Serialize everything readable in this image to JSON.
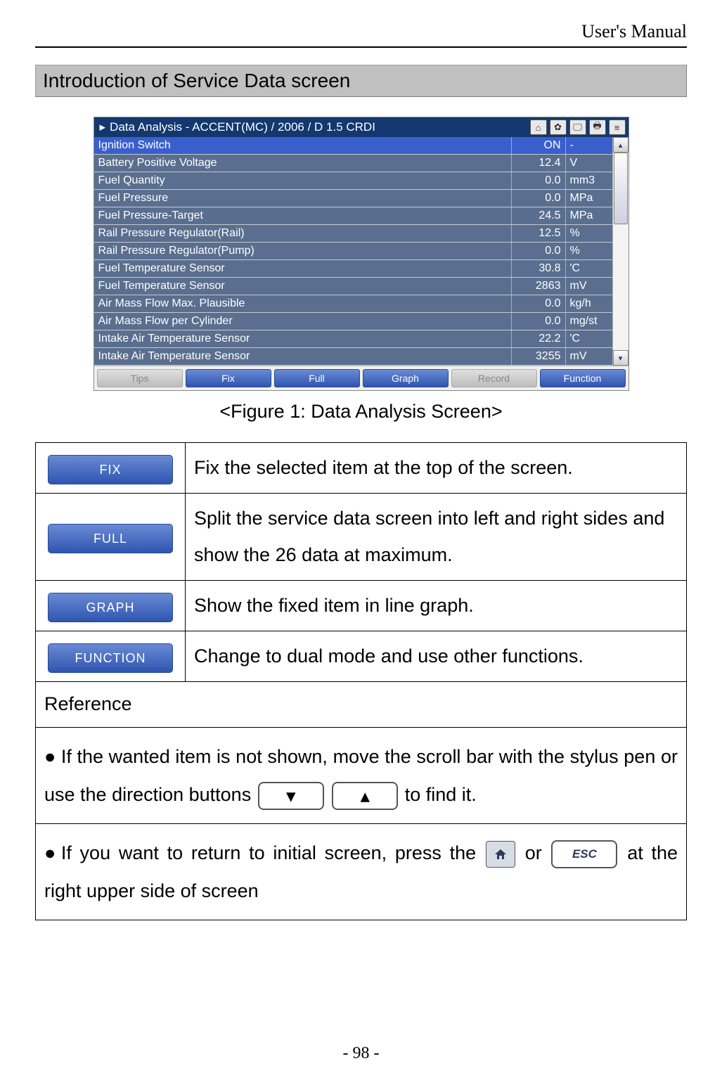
{
  "header": {
    "doc_title": "User's Manual"
  },
  "section": {
    "title": "Introduction of Service Data screen"
  },
  "screenshot": {
    "titlebar": {
      "text": "Data Analysis - ACCENT(MC) / 2006 / D 1.5 CRDI",
      "bg": "#13386f"
    },
    "icons": [
      "⌂",
      "✿",
      "🖵",
      "🖶",
      "≡"
    ],
    "rows": [
      {
        "name": "Ignition Switch",
        "value": "ON",
        "unit": "-",
        "sel": true
      },
      {
        "name": "Battery Positive Voltage",
        "value": "12.4",
        "unit": "V"
      },
      {
        "name": "Fuel Quantity",
        "value": "0.0",
        "unit": "mm3"
      },
      {
        "name": "Fuel Pressure",
        "value": "0.0",
        "unit": "MPa"
      },
      {
        "name": "Fuel Pressure-Target",
        "value": "24.5",
        "unit": "MPa"
      },
      {
        "name": "Rail Pressure Regulator(Rail)",
        "value": "12.5",
        "unit": "%"
      },
      {
        "name": "Rail Pressure Regulator(Pump)",
        "value": "0.0",
        "unit": "%"
      },
      {
        "name": "Fuel Temperature Sensor",
        "value": "30.8",
        "unit": "'C"
      },
      {
        "name": "Fuel Temperature Sensor",
        "value": "2863",
        "unit": "mV"
      },
      {
        "name": "Air Mass Flow Max. Plausible",
        "value": "0.0",
        "unit": "kg/h"
      },
      {
        "name": "Air Mass Flow per Cylinder",
        "value": "0.0",
        "unit": "mg/st"
      },
      {
        "name": "Intake Air Temperature Sensor",
        "value": "22.2",
        "unit": "'C"
      },
      {
        "name": "Intake Air Temperature Sensor",
        "value": "3255",
        "unit": "mV"
      }
    ],
    "row_bg_default": "#5a6f8f",
    "row_bg_selected": "#3a5fcd",
    "footer_buttons": [
      {
        "label": "Tips",
        "style": "gray"
      },
      {
        "label": "Fix",
        "style": "blue"
      },
      {
        "label": "Full",
        "style": "blue"
      },
      {
        "label": "Graph",
        "style": "blue"
      },
      {
        "label": "Record",
        "style": "gray"
      },
      {
        "label": "Function",
        "style": "blue"
      }
    ]
  },
  "figure_caption": "<Figure 1: Data Analysis Screen>",
  "buttons": {
    "fix": "FIX",
    "full": "FULL",
    "graph": "GRAPH",
    "function": "FUNCTION",
    "esc": "ESC"
  },
  "desc": {
    "fix": "Fix the selected item at the top of the screen.",
    "full": "Split the service data screen into left and right sides and show the 26 data at maximum.",
    "graph": "Show the fixed item in line graph.",
    "function": "Change to dual mode and use other functions."
  },
  "reference": {
    "label": "Reference",
    "item1_a": "If the wanted item is not shown, move the scroll bar with the stylus pen or use the direction buttons",
    "item1_b": "to find it.",
    "item2_a": "If you want to return to initial screen, press the",
    "item2_b": "or",
    "item2_c": "at the right upper side of screen"
  },
  "page_number": "- 98 -",
  "colors": {
    "section_bg": "#c0c0c0",
    "pill_grad_top": "#6a8ad4",
    "pill_grad_bottom": "#2e55b0"
  }
}
